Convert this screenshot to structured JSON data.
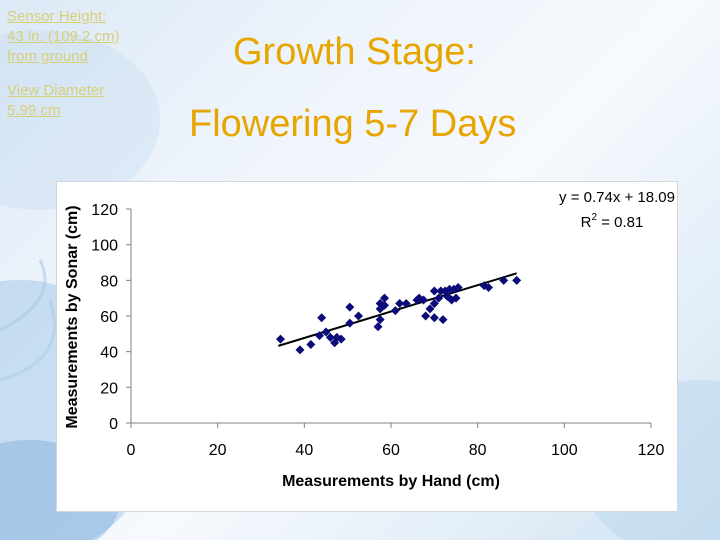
{
  "sensor_info": {
    "height_label": "Sensor Height:",
    "height_value": "43 in. (109.2 cm)",
    "height_ref": "from ground",
    "diameter_label": "View Diameter",
    "diameter_value": "5.99 cm"
  },
  "title": {
    "line1": "Growth Stage:",
    "line2": "Flowering 5-7 Days"
  },
  "colors": {
    "title": "#e8a500",
    "info_text": "#d8cf7a",
    "points": "#0b0b7a",
    "trendline": "#000000"
  },
  "chart_data": {
    "type": "scatter",
    "xlabel": "Measurements by Hand (cm)",
    "ylabel": "Measurements by Sonar (cm)",
    "xlim": [
      0,
      120
    ],
    "ylim": [
      0,
      120
    ],
    "x_ticks": [
      "0",
      "20",
      "40",
      "60",
      "80",
      "100",
      "120"
    ],
    "y_ticks": [
      "0",
      "20",
      "40",
      "60",
      "80",
      "100",
      "120"
    ],
    "grid": false,
    "marker": "diamond",
    "trendline": {
      "slope": 0.74,
      "intercept": 18.09,
      "x_range": [
        34,
        89
      ]
    },
    "equation": "y = 0.74x + 18.09",
    "r2_label": "R",
    "r2_sup": "2",
    "r2_value": " = 0.81",
    "points": [
      [
        34.5,
        47
      ],
      [
        39,
        41
      ],
      [
        41.5,
        44
      ],
      [
        43.5,
        49
      ],
      [
        44,
        59
      ],
      [
        45,
        51
      ],
      [
        46,
        48
      ],
      [
        47,
        45
      ],
      [
        47.5,
        48
      ],
      [
        48.5,
        47
      ],
      [
        50.5,
        56
      ],
      [
        50.5,
        65
      ],
      [
        52.5,
        60
      ],
      [
        57,
        54
      ],
      [
        57.5,
        58
      ],
      [
        57.5,
        64
      ],
      [
        57.5,
        67
      ],
      [
        58.5,
        70
      ],
      [
        58.5,
        66
      ],
      [
        61,
        63
      ],
      [
        62,
        67
      ],
      [
        63.5,
        67
      ],
      [
        66,
        69
      ],
      [
        66.5,
        70
      ],
      [
        67.5,
        69
      ],
      [
        68,
        60
      ],
      [
        69,
        64
      ],
      [
        70,
        59
      ],
      [
        70,
        67
      ],
      [
        70,
        74
      ],
      [
        71,
        70
      ],
      [
        71.5,
        74
      ],
      [
        72,
        58
      ],
      [
        72.5,
        74
      ],
      [
        73,
        71
      ],
      [
        73.5,
        75
      ],
      [
        74,
        69
      ],
      [
        74.5,
        75
      ],
      [
        75,
        70
      ],
      [
        75.5,
        76
      ],
      [
        81.5,
        77
      ],
      [
        82.5,
        76
      ],
      [
        86,
        80
      ],
      [
        89,
        80
      ]
    ]
  }
}
